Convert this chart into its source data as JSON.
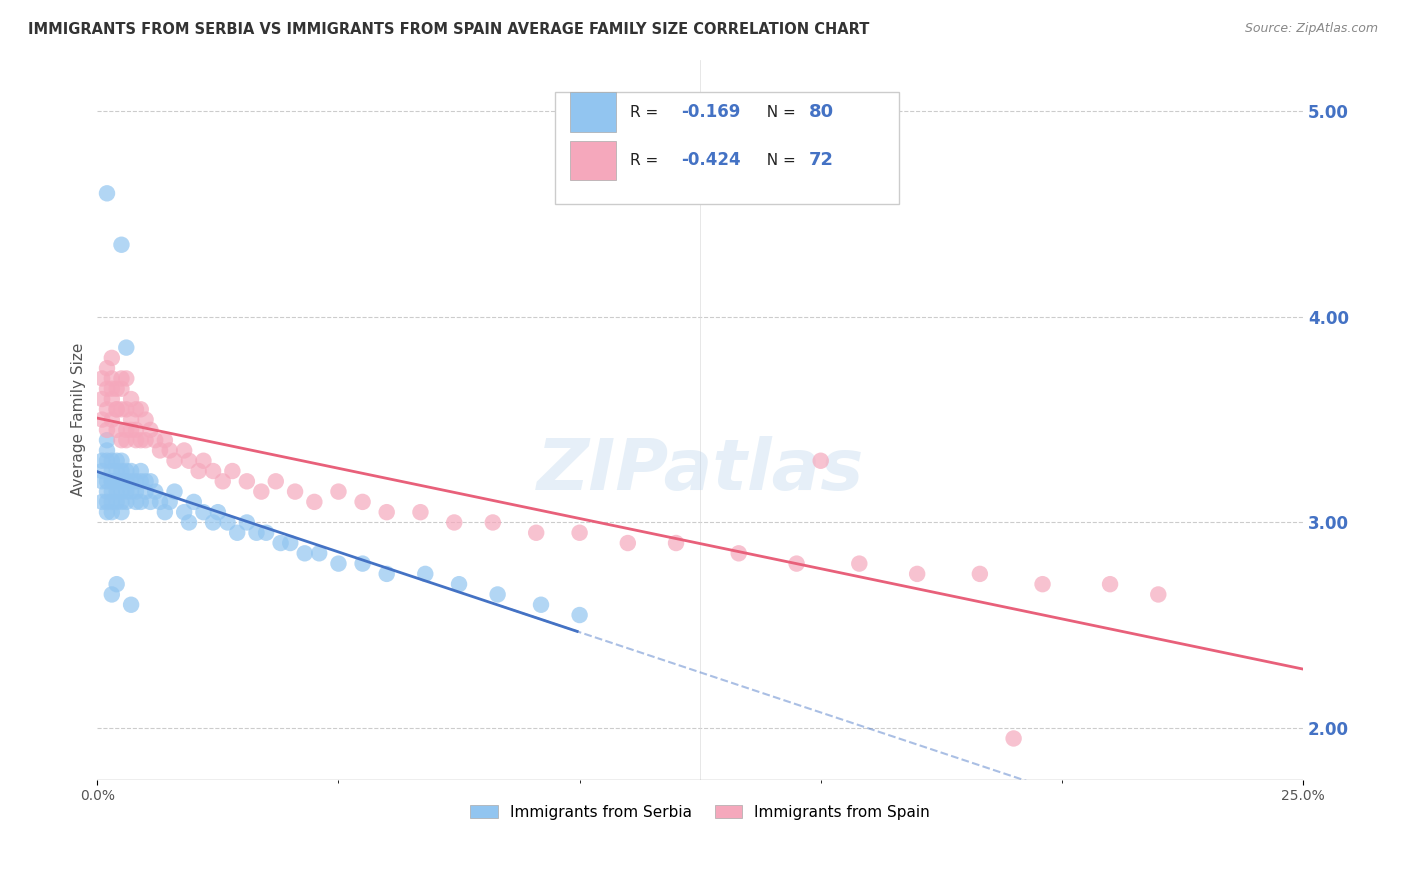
{
  "title": "IMMIGRANTS FROM SERBIA VS IMMIGRANTS FROM SPAIN AVERAGE FAMILY SIZE CORRELATION CHART",
  "source": "Source: ZipAtlas.com",
  "ylabel": "Average Family Size",
  "serbia_R": -0.169,
  "serbia_N": 80,
  "spain_R": -0.424,
  "spain_N": 72,
  "right_yticks": [
    2.0,
    3.0,
    4.0,
    5.0
  ],
  "xlim": [
    0.0,
    0.25
  ],
  "ylim": [
    1.75,
    5.25
  ],
  "serbia_color": "#92C5F0",
  "spain_color": "#F5A8BC",
  "serbia_line_color": "#4472C4",
  "spain_line_color": "#E8607A",
  "watermark_text": "ZIPatlas",
  "serbia_scatter_x": [
    0.001,
    0.001,
    0.001,
    0.001,
    0.002,
    0.002,
    0.002,
    0.002,
    0.002,
    0.002,
    0.002,
    0.003,
    0.003,
    0.003,
    0.003,
    0.003,
    0.003,
    0.003,
    0.004,
    0.004,
    0.004,
    0.004,
    0.004,
    0.005,
    0.005,
    0.005,
    0.005,
    0.005,
    0.005,
    0.006,
    0.006,
    0.006,
    0.006,
    0.007,
    0.007,
    0.007,
    0.008,
    0.008,
    0.008,
    0.009,
    0.009,
    0.009,
    0.01,
    0.01,
    0.011,
    0.011,
    0.012,
    0.013,
    0.014,
    0.015,
    0.016,
    0.018,
    0.019,
    0.02,
    0.022,
    0.024,
    0.025,
    0.027,
    0.029,
    0.031,
    0.033,
    0.035,
    0.038,
    0.04,
    0.043,
    0.046,
    0.05,
    0.055,
    0.06,
    0.068,
    0.075,
    0.083,
    0.092,
    0.1,
    0.005,
    0.006,
    0.002,
    0.003,
    0.004,
    0.007
  ],
  "serbia_scatter_y": [
    3.2,
    3.3,
    3.1,
    3.25,
    3.15,
    3.2,
    3.3,
    3.05,
    3.35,
    3.1,
    3.4,
    3.2,
    3.15,
    3.25,
    3.1,
    3.05,
    3.3,
    3.2,
    3.15,
    3.2,
    3.25,
    3.1,
    3.3,
    3.2,
    3.15,
    3.1,
    3.25,
    3.05,
    3.3,
    3.2,
    3.15,
    3.25,
    3.1,
    3.2,
    3.15,
    3.25,
    3.2,
    3.1,
    3.15,
    3.2,
    3.1,
    3.25,
    3.15,
    3.2,
    3.1,
    3.2,
    3.15,
    3.1,
    3.05,
    3.1,
    3.15,
    3.05,
    3.0,
    3.1,
    3.05,
    3.0,
    3.05,
    3.0,
    2.95,
    3.0,
    2.95,
    2.95,
    2.9,
    2.9,
    2.85,
    2.85,
    2.8,
    2.8,
    2.75,
    2.75,
    2.7,
    2.65,
    2.6,
    2.55,
    4.35,
    3.85,
    4.6,
    2.65,
    2.7,
    2.6
  ],
  "spain_scatter_x": [
    0.001,
    0.001,
    0.001,
    0.002,
    0.002,
    0.002,
    0.002,
    0.003,
    0.003,
    0.003,
    0.003,
    0.004,
    0.004,
    0.004,
    0.005,
    0.005,
    0.005,
    0.006,
    0.006,
    0.006,
    0.007,
    0.007,
    0.008,
    0.008,
    0.009,
    0.009,
    0.01,
    0.01,
    0.011,
    0.012,
    0.013,
    0.014,
    0.015,
    0.016,
    0.018,
    0.019,
    0.021,
    0.022,
    0.024,
    0.026,
    0.028,
    0.031,
    0.034,
    0.037,
    0.041,
    0.045,
    0.05,
    0.055,
    0.06,
    0.067,
    0.074,
    0.082,
    0.091,
    0.1,
    0.11,
    0.12,
    0.133,
    0.145,
    0.158,
    0.17,
    0.183,
    0.196,
    0.21,
    0.22,
    0.003,
    0.004,
    0.005,
    0.006,
    0.007,
    0.008,
    0.15,
    0.19
  ],
  "spain_scatter_y": [
    3.5,
    3.6,
    3.7,
    3.45,
    3.55,
    3.65,
    3.75,
    3.5,
    3.6,
    3.7,
    3.8,
    3.45,
    3.55,
    3.65,
    3.4,
    3.55,
    3.65,
    3.45,
    3.55,
    3.7,
    3.5,
    3.6,
    3.45,
    3.55,
    3.4,
    3.55,
    3.5,
    3.4,
    3.45,
    3.4,
    3.35,
    3.4,
    3.35,
    3.3,
    3.35,
    3.3,
    3.25,
    3.3,
    3.25,
    3.2,
    3.25,
    3.2,
    3.15,
    3.2,
    3.15,
    3.1,
    3.15,
    3.1,
    3.05,
    3.05,
    3.0,
    3.0,
    2.95,
    2.95,
    2.9,
    2.9,
    2.85,
    2.8,
    2.8,
    2.75,
    2.75,
    2.7,
    2.7,
    2.65,
    3.65,
    3.55,
    3.7,
    3.4,
    3.45,
    3.4,
    3.3,
    1.95
  ]
}
